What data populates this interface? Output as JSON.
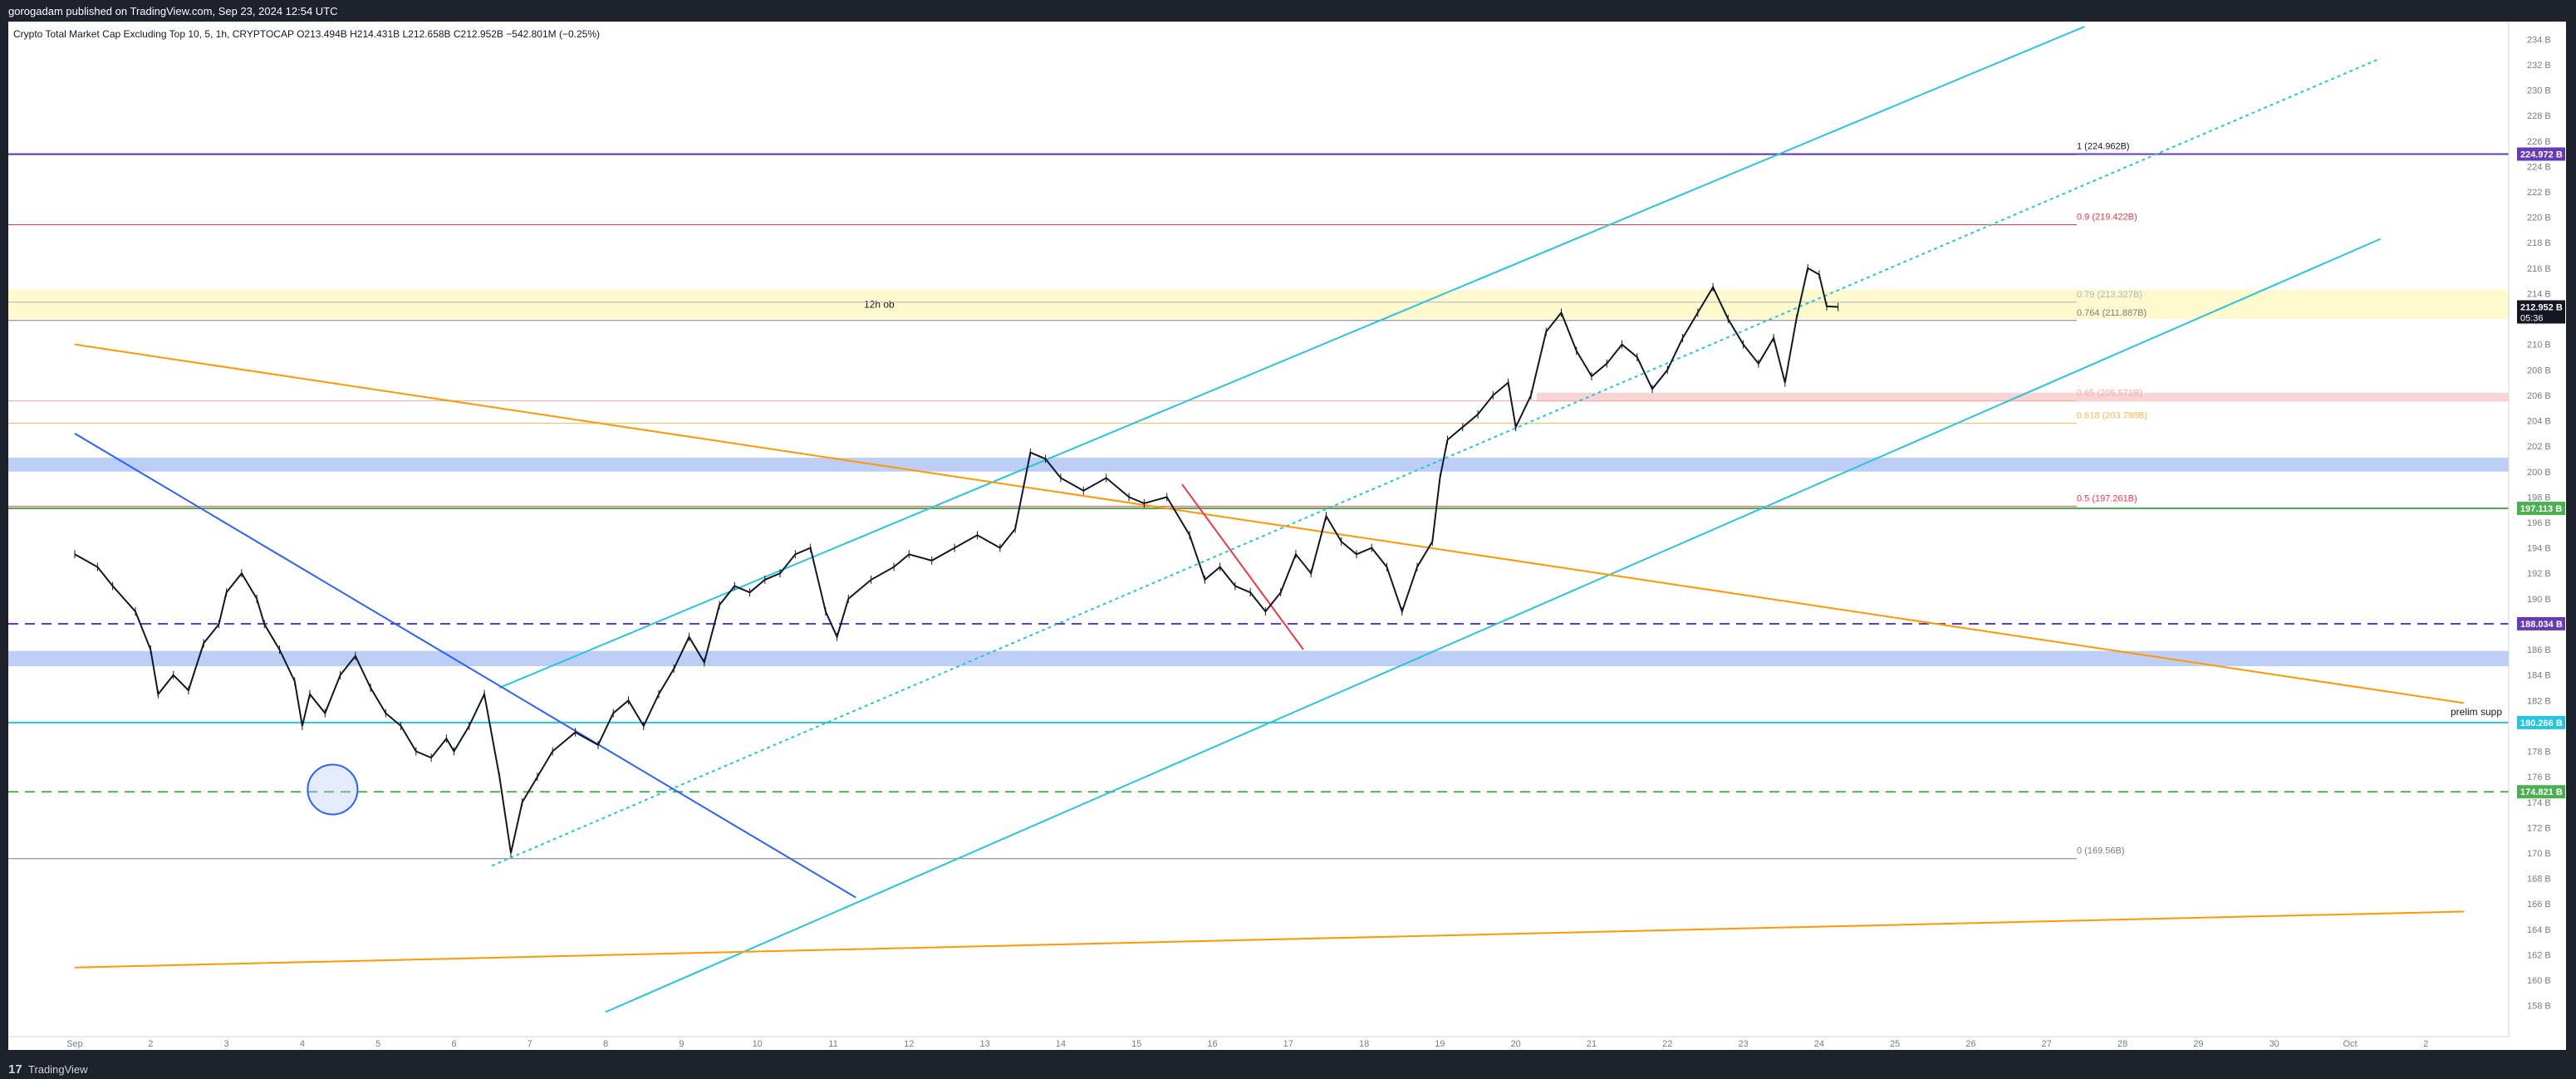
{
  "header": {
    "published_text": "gorogadam published on TradingView.com, Sep 23, 2024 12:54 UTC"
  },
  "legend": {
    "text": "Crypto Total Market Cap Excluding Top 10, 5, 1h, CRYPTOCAP  O213.494B  H214.431B  L212.658B  C212.952B  −542.801M (−0.25%)"
  },
  "footer": {
    "logo": "17",
    "brand": "TradingView"
  },
  "colors": {
    "cyan": "#26c6da",
    "orange": "#ff9800",
    "blue": "#2962ff",
    "red": "#f23645",
    "purple": "#673ab7",
    "green": "#4caf50",
    "zone_blue": "#b2c6f5",
    "zone_yellow": "#fff9c4",
    "zone_red": "#f8cccc"
  },
  "chart_data": {
    "type": "line",
    "title": "",
    "xlabel": "",
    "ylabel": "",
    "ylim": [
      157,
      235
    ],
    "unit": "B",
    "x_ticks": [
      "Sep",
      "2",
      "3",
      "4",
      "5",
      "6",
      "7",
      "8",
      "9",
      "10",
      "11",
      "12",
      "13",
      "14",
      "15",
      "16",
      "17",
      "18",
      "19",
      "20",
      "21",
      "22",
      "23",
      "24",
      "25",
      "26",
      "27",
      "28",
      "29",
      "30",
      "Oct",
      "2"
    ],
    "y_ticks": [
      "234 B",
      "232 B",
      "230 B",
      "228 B",
      "226 B",
      "224 B",
      "222 B",
      "220 B",
      "218 B",
      "216 B",
      "214 B",
      "212 B",
      "210 B",
      "208 B",
      "206 B",
      "204 B",
      "202 B",
      "200 B",
      "198 B",
      "196 B",
      "194 B",
      "192 B",
      "190 B",
      "188 B",
      "186 B",
      "184 B",
      "182 B",
      "180 B",
      "178 B",
      "176 B",
      "174 B",
      "172 B",
      "170 B",
      "168 B",
      "166 B",
      "164 B",
      "162 B",
      "160 B",
      "158 B"
    ],
    "price_series": {
      "name": "",
      "points": [
        [
          0,
          193.5
        ],
        [
          0.3,
          192.5
        ],
        [
          0.5,
          191.0
        ],
        [
          0.8,
          189.0
        ],
        [
          1.0,
          186.0
        ],
        [
          1.1,
          182.5
        ],
        [
          1.3,
          184.0
        ],
        [
          1.5,
          182.8
        ],
        [
          1.7,
          186.5
        ],
        [
          1.9,
          188.0
        ],
        [
          2.0,
          190.5
        ],
        [
          2.2,
          192.0
        ],
        [
          2.4,
          190.0
        ],
        [
          2.5,
          188.0
        ],
        [
          2.7,
          186.0
        ],
        [
          2.9,
          183.5
        ],
        [
          3.0,
          180.0
        ],
        [
          3.1,
          182.5
        ],
        [
          3.3,
          181.0
        ],
        [
          3.5,
          184.0
        ],
        [
          3.7,
          185.5
        ],
        [
          3.9,
          183.0
        ],
        [
          4.1,
          181.0
        ],
        [
          4.3,
          180.0
        ],
        [
          4.5,
          178.0
        ],
        [
          4.7,
          177.5
        ],
        [
          4.9,
          179.0
        ],
        [
          5.0,
          178.0
        ],
        [
          5.2,
          180.0
        ],
        [
          5.4,
          182.5
        ],
        [
          5.6,
          176.0
        ],
        [
          5.75,
          170.0
        ],
        [
          5.9,
          174.0
        ],
        [
          6.1,
          176.0
        ],
        [
          6.3,
          178.0
        ],
        [
          6.6,
          179.5
        ],
        [
          6.9,
          178.5
        ],
        [
          7.1,
          181.0
        ],
        [
          7.3,
          182.0
        ],
        [
          7.5,
          180.0
        ],
        [
          7.7,
          182.5
        ],
        [
          7.9,
          184.5
        ],
        [
          8.1,
          187.0
        ],
        [
          8.3,
          185.0
        ],
        [
          8.5,
          189.5
        ],
        [
          8.7,
          191.0
        ],
        [
          8.9,
          190.5
        ],
        [
          9.1,
          191.5
        ],
        [
          9.3,
          192.0
        ],
        [
          9.5,
          193.5
        ],
        [
          9.7,
          194.0
        ],
        [
          9.9,
          189.0
        ],
        [
          10.05,
          187.0
        ],
        [
          10.2,
          190.0
        ],
        [
          10.5,
          191.5
        ],
        [
          10.8,
          192.5
        ],
        [
          11.0,
          193.5
        ],
        [
          11.3,
          193.0
        ],
        [
          11.6,
          194.0
        ],
        [
          11.9,
          195.0
        ],
        [
          12.2,
          194.0
        ],
        [
          12.4,
          195.5
        ],
        [
          12.6,
          201.5
        ],
        [
          12.8,
          201.0
        ],
        [
          13.0,
          199.5
        ],
        [
          13.3,
          198.5
        ],
        [
          13.6,
          199.5
        ],
        [
          13.9,
          198.0
        ],
        [
          14.1,
          197.5
        ],
        [
          14.4,
          198.0
        ],
        [
          14.7,
          195.0
        ],
        [
          14.9,
          191.5
        ],
        [
          15.1,
          192.5
        ],
        [
          15.3,
          191.0
        ],
        [
          15.5,
          190.5
        ],
        [
          15.7,
          189.0
        ],
        [
          15.9,
          190.5
        ],
        [
          16.1,
          193.5
        ],
        [
          16.3,
          192.0
        ],
        [
          16.5,
          196.5
        ],
        [
          16.7,
          194.5
        ],
        [
          16.9,
          193.5
        ],
        [
          17.1,
          194.0
        ],
        [
          17.3,
          192.5
        ],
        [
          17.5,
          189.0
        ],
        [
          17.7,
          192.5
        ],
        [
          17.9,
          194.5
        ],
        [
          18.0,
          199.5
        ],
        [
          18.1,
          202.5
        ],
        [
          18.3,
          203.5
        ],
        [
          18.5,
          204.5
        ],
        [
          18.7,
          206.0
        ],
        [
          18.9,
          207.0
        ],
        [
          19.0,
          203.5
        ],
        [
          19.2,
          206.0
        ],
        [
          19.4,
          211.0
        ],
        [
          19.6,
          212.5
        ],
        [
          19.8,
          209.5
        ],
        [
          20.0,
          207.5
        ],
        [
          20.2,
          208.5
        ],
        [
          20.4,
          210.0
        ],
        [
          20.6,
          209.0
        ],
        [
          20.8,
          206.5
        ],
        [
          21.0,
          208.0
        ],
        [
          21.2,
          210.5
        ],
        [
          21.4,
          212.5
        ],
        [
          21.6,
          214.5
        ],
        [
          21.8,
          212.0
        ],
        [
          22.0,
          210.0
        ],
        [
          22.2,
          208.5
        ],
        [
          22.4,
          210.5
        ],
        [
          22.55,
          207.0
        ],
        [
          22.7,
          212.0
        ],
        [
          22.85,
          216.0
        ],
        [
          23.0,
          215.5
        ],
        [
          23.1,
          213.0
        ],
        [
          23.25,
          212.95
        ]
      ]
    },
    "horizontal_levels": [
      {
        "label": "224.972 B",
        "value": 224.972,
        "color": "#673ab7",
        "style": "solid"
      },
      {
        "label": "197.113 B",
        "value": 197.113,
        "color": "#4caf50",
        "style": "solid"
      },
      {
        "label": "188.034 B",
        "value": 188.034,
        "color": "#673ab7",
        "style": "dashed"
      },
      {
        "label": "180.266 B",
        "value": 180.266,
        "color": "#26c6da",
        "style": "solid"
      },
      {
        "label": "174.821 B",
        "value": 174.821,
        "color": "#4caf50",
        "style": "dashed"
      }
    ],
    "last_price": {
      "label": "212.952 B",
      "countdown": "05:36",
      "value": 212.952
    },
    "fibonacci": [
      {
        "label": "1 (224.962B)",
        "value": 224.962,
        "color": "#131722"
      },
      {
        "label": "0.9 (219.422B)",
        "value": 219.422,
        "color": "#f23645"
      },
      {
        "label": "0.79 (213.327B)",
        "value": 213.327,
        "color": "#aeb3bd"
      },
      {
        "label": "0.764 (211.887B)",
        "value": 211.887,
        "color": "#787b86"
      },
      {
        "label": "0.65 (205.571B)",
        "value": 205.571,
        "color": "#f8aaaa"
      },
      {
        "label": "0.618 (203.798B)",
        "value": 203.798,
        "color": "#ffb74d"
      },
      {
        "label": "0.5 (197.261B)",
        "value": 197.261,
        "color": "#f23645"
      },
      {
        "label": "0 (169.56B)",
        "value": 169.56,
        "color": "#787b86"
      }
    ],
    "zones": [
      {
        "label": "12h ob",
        "from": 212.0,
        "to": 214.3,
        "color": "#fff9c4"
      },
      {
        "label": "",
        "from": 200.0,
        "to": 201.1,
        "color": "#b2c6f5"
      },
      {
        "label": "",
        "from": 184.7,
        "to": 185.9,
        "color": "#b2c6f5"
      },
      {
        "label": "",
        "from": 205.5,
        "to": 206.2,
        "color": "#f8cccc"
      }
    ],
    "annotations": [
      "12h ob",
      "prelim supp"
    ],
    "trendlines": [
      {
        "color": "#26c6da",
        "style": "solid",
        "p1": [
          5.6,
          183.0
        ],
        "p2": [
          26.5,
          235.0
        ]
      },
      {
        "color": "#26c6da",
        "style": "solid",
        "p1": [
          7.0,
          157.5
        ],
        "p2": [
          30.4,
          218.3
        ]
      },
      {
        "color": "#26c6da",
        "style": "dotted",
        "p1": [
          5.5,
          169.0
        ],
        "p2": [
          30.4,
          232.5
        ]
      },
      {
        "color": "#ff9800",
        "style": "solid",
        "p1": [
          0.0,
          210.0
        ],
        "p2": [
          31.5,
          181.8
        ]
      },
      {
        "color": "#ff9800",
        "style": "solid",
        "p1": [
          0.0,
          161.0
        ],
        "p2": [
          31.5,
          165.4
        ]
      },
      {
        "color": "#2962ff",
        "style": "solid",
        "p1": [
          0.0,
          203.0
        ],
        "p2": [
          10.3,
          166.5
        ]
      },
      {
        "color": "#f23645",
        "style": "solid",
        "p1": [
          14.6,
          199.0
        ],
        "p2": [
          16.2,
          186.0
        ]
      }
    ],
    "circle_marker": {
      "x": 3.4,
      "y": 175.0
    },
    "grid": true
  }
}
